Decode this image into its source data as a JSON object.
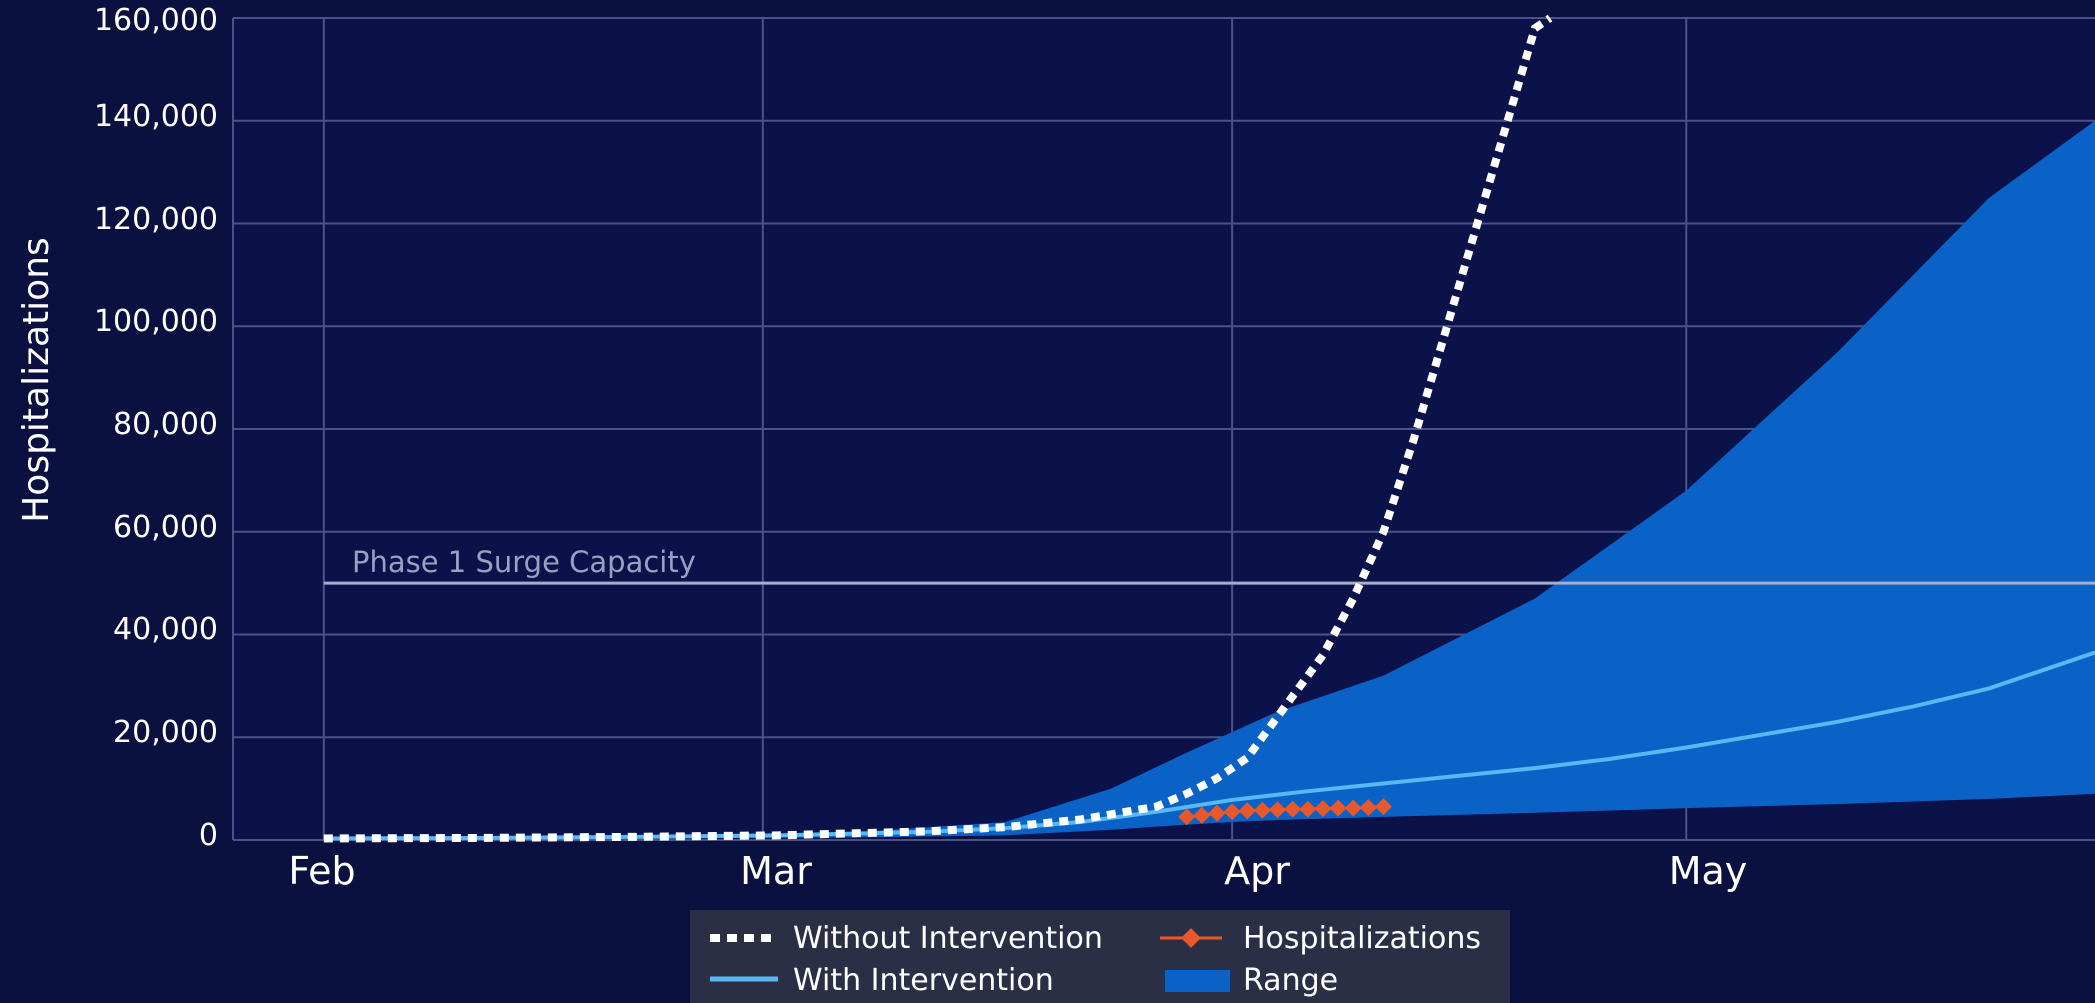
{
  "colors": {
    "background": "#0a1040",
    "plot_background": "#0b124a",
    "grid": "#4a5388",
    "without_intervention": "#ffffff",
    "with_intervention": "#58b8f2",
    "hospitalizations": "#e8582a",
    "range": "#0a62c6",
    "surge_line": "#a8adc8",
    "legend_background": "#2b2f46"
  },
  "chart_data": {
    "type": "line",
    "title": "",
    "xlabel": "",
    "ylabel": "Hospitalizations",
    "ylim": [
      0,
      160000
    ],
    "y_ticks": [
      "0",
      "20,000",
      "40,000",
      "60,000",
      "80,000",
      "100,000",
      "120,000",
      "140,000",
      "160,000"
    ],
    "x_ticks": [
      "Feb",
      "Mar",
      "Apr",
      "May"
    ],
    "x_tick_days": [
      0,
      29,
      60,
      90
    ],
    "xlim_days": [
      -6,
      117
    ],
    "grid": true,
    "legend_position": "bottom-center",
    "annotations": [
      {
        "text": "Phase 1 Surge Capacity",
        "y": 50000
      }
    ],
    "series": [
      {
        "name": "Without Intervention",
        "style": "dotted",
        "x": [
          0,
          10,
          20,
          30,
          40,
          45,
          50,
          55,
          57,
          59,
          61,
          63,
          66,
          68,
          70,
          72,
          74,
          76,
          78,
          80,
          81
        ],
        "y": [
          300,
          400,
          600,
          900,
          1700,
          2500,
          4000,
          6500,
          9000,
          12000,
          16000,
          24000,
          36000,
          47000,
          60000,
          78000,
          98000,
          118000,
          138000,
          158000,
          160000
        ]
      },
      {
        "name": "With Intervention",
        "style": "solid",
        "x": [
          0,
          10,
          20,
          30,
          40,
          45,
          50,
          55,
          60,
          65,
          70,
          75,
          80,
          85,
          90,
          95,
          100,
          105,
          110,
          117
        ],
        "y": [
          300,
          400,
          600,
          900,
          1600,
          2300,
          3500,
          5500,
          7800,
          9500,
          11000,
          12500,
          14000,
          15800,
          18000,
          20500,
          23000,
          26000,
          29500,
          36500
        ]
      },
      {
        "name": "Hospitalizations",
        "style": "markers",
        "x": [
          57,
          58,
          59,
          60,
          61,
          62,
          63,
          64,
          65,
          66,
          67,
          68,
          69,
          70
        ],
        "y": [
          4500,
          4800,
          5200,
          5500,
          5700,
          5800,
          5900,
          6000,
          6000,
          6100,
          6200,
          6200,
          6300,
          6500
        ]
      },
      {
        "name": "Range",
        "style": "band",
        "x": [
          0,
          20,
          35,
          45,
          52,
          57,
          60,
          63,
          70,
          80,
          90,
          100,
          110,
          117
        ],
        "upper": [
          500,
          800,
          1500,
          3500,
          10000,
          17000,
          21000,
          25000,
          32000,
          47000,
          68000,
          95000,
          125000,
          140000
        ],
        "lower": [
          200,
          300,
          500,
          900,
          2000,
          3000,
          3500,
          3900,
          4500,
          5300,
          6200,
          7000,
          8000,
          9000
        ]
      }
    ]
  },
  "legend": [
    {
      "label": "Without Intervention",
      "kind": "dotted"
    },
    {
      "label": "Hospitalizations",
      "kind": "marker-line"
    },
    {
      "label": "With Intervention",
      "kind": "solid"
    },
    {
      "label": "Range",
      "kind": "band"
    }
  ]
}
